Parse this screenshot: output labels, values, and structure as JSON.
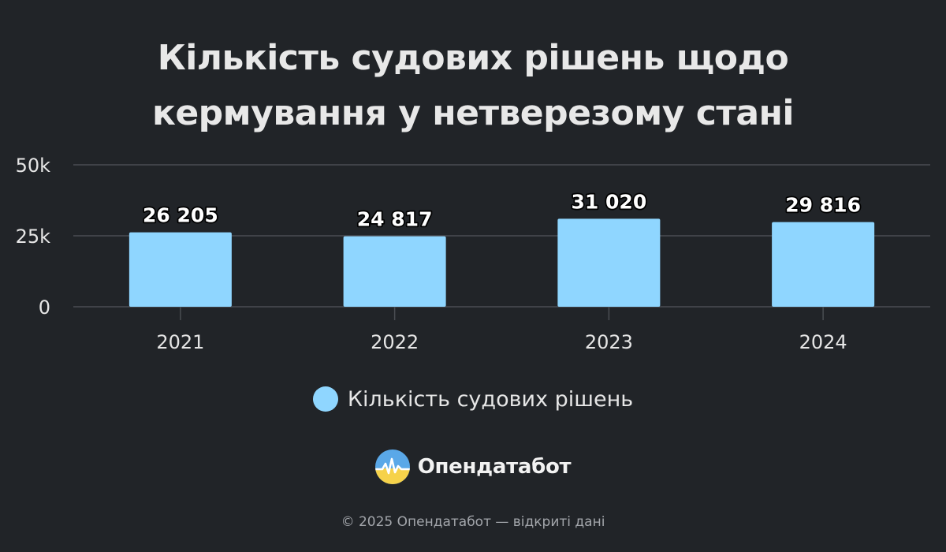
{
  "chart_data": {
    "type": "bar",
    "title_lines": [
      "Кількість судових рішень щодо",
      "кермування у нетверезому стані"
    ],
    "categories": [
      "2021",
      "2022",
      "2023",
      "2024"
    ],
    "series": [
      {
        "name": "Кількість судових рішень",
        "values": [
          26205,
          24817,
          31020,
          29816
        ],
        "labels": [
          "26 205",
          "24 817",
          "31 020",
          "29 816"
        ],
        "color": "#8fd6ff"
      }
    ],
    "ylim": [
      0,
      50000
    ],
    "yticks": [
      {
        "value": 0,
        "label": "0"
      },
      {
        "value": 25000,
        "label": "25k"
      },
      {
        "value": 50000,
        "label": "50k"
      }
    ],
    "grid": true,
    "legend_position": "bottom"
  },
  "brand": {
    "name": "Опендатабот",
    "logo_icon": "opendatabot-logo-icon"
  },
  "footer": {
    "text": "© 2025 Опендатабот — відкриті дані"
  },
  "colors": {
    "background": "#212428",
    "bar": "#8fd6ff",
    "grid": "#4a4d52",
    "text": "#e6e6e6"
  }
}
